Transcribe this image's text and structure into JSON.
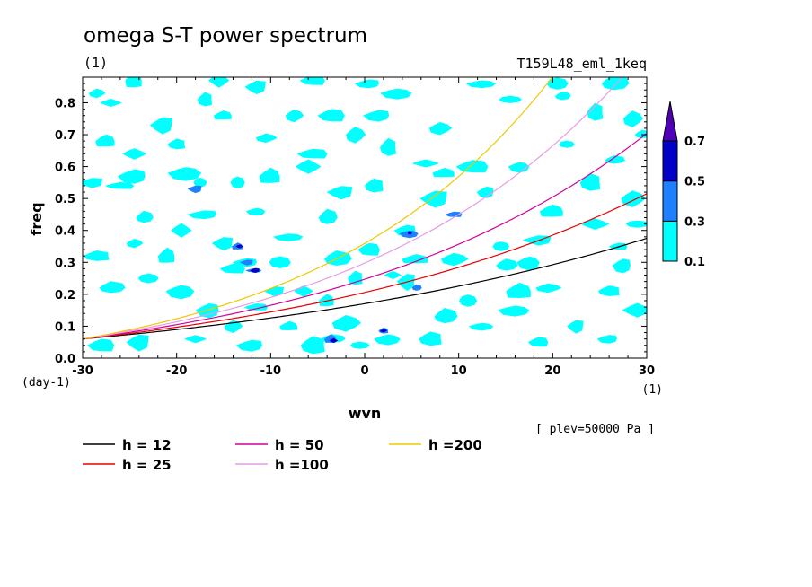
{
  "chart_data": {
    "type": "contour",
    "title": "omega S-T power spectrum",
    "subtitle": "(1)",
    "run_label": "T159L48_eml_1keq",
    "xlabel": "wvn",
    "ylabel": "freq",
    "x_unit": "(1)",
    "y_unit": "(day-1)",
    "pressure_label": "[ plev=50000 Pa ]",
    "xlim": [
      -30,
      30
    ],
    "ylim": [
      0,
      0.88
    ],
    "x_ticks": [
      "-30",
      "-20",
      "-10",
      "0",
      "10",
      "20",
      "30"
    ],
    "x_tick_values": [
      -30,
      -20,
      -10,
      0,
      10,
      20,
      30
    ],
    "y_ticks": [
      "0.0",
      "0.1",
      "0.2",
      "0.3",
      "0.4",
      "0.5",
      "0.6",
      "0.7",
      "0.8"
    ],
    "y_tick_values": [
      0,
      0.1,
      0.2,
      0.3,
      0.4,
      0.5,
      0.6,
      0.7,
      0.8
    ],
    "contour_levels": [
      "0.1",
      "0.3",
      "0.5",
      "0.7"
    ],
    "level_values": [
      0.1,
      0.3,
      0.5,
      0.7
    ],
    "level_colors": [
      "#00ffff",
      "#1e7fff",
      "#0000c8",
      "#5000b4"
    ],
    "dispersion_curves": [
      {
        "h": 12,
        "label": "h = 12",
        "color": "#000000"
      },
      {
        "h": 25,
        "label": "h = 25",
        "color": "#e60000"
      },
      {
        "h": 50,
        "label": "h = 50",
        "color": "#d2009b"
      },
      {
        "h": 100,
        "label": "h =100",
        "color": "#e69ce6"
      },
      {
        "h": 200,
        "label": "h =200",
        "color": "#f0c800"
      }
    ],
    "patches": [
      {
        "x": -28.5,
        "y": 0.83,
        "level": 0.1
      },
      {
        "x": -24.5,
        "y": 0.87,
        "level": 0.1
      },
      {
        "x": -15.5,
        "y": 0.87,
        "level": 0.1
      },
      {
        "x": -11.5,
        "y": 0.85,
        "level": 0.1
      },
      {
        "x": -5.5,
        "y": 0.87,
        "level": 0.1
      },
      {
        "x": 0.5,
        "y": 0.86,
        "level": 0.1
      },
      {
        "x": 12.5,
        "y": 0.86,
        "level": 0.1
      },
      {
        "x": 20.5,
        "y": 0.86,
        "level": 0.1
      },
      {
        "x": 26.5,
        "y": 0.86,
        "level": 0.1
      },
      {
        "x": -17,
        "y": 0.81,
        "level": 0.1
      },
      {
        "x": -7.5,
        "y": 0.76,
        "level": 0.1
      },
      {
        "x": -15,
        "y": 0.76,
        "level": 0.1
      },
      {
        "x": -27,
        "y": 0.8,
        "level": 0.1
      },
      {
        "x": -21.5,
        "y": 0.73,
        "level": 0.1
      },
      {
        "x": -3.5,
        "y": 0.76,
        "level": 0.1
      },
      {
        "x": 1.5,
        "y": 0.76,
        "level": 0.1
      },
      {
        "x": 3.5,
        "y": 0.83,
        "level": 0.1
      },
      {
        "x": 15.5,
        "y": 0.81,
        "level": 0.1
      },
      {
        "x": 21,
        "y": 0.82,
        "level": 0.1
      },
      {
        "x": 24.5,
        "y": 0.77,
        "level": 0.1
      },
      {
        "x": 28.5,
        "y": 0.75,
        "level": 0.1
      },
      {
        "x": -27.5,
        "y": 0.68,
        "level": 0.1
      },
      {
        "x": -24.5,
        "y": 0.64,
        "level": 0.1
      },
      {
        "x": -29,
        "y": 0.55,
        "level": 0.1
      },
      {
        "x": -26,
        "y": 0.54,
        "level": 0.1
      },
      {
        "x": -24.5,
        "y": 0.57,
        "level": 0.1
      },
      {
        "x": -19,
        "y": 0.58,
        "level": 0.1
      },
      {
        "x": -17.5,
        "y": 0.55,
        "level": 0.1
      },
      {
        "x": -23.5,
        "y": 0.44,
        "level": 0.1
      },
      {
        "x": -20,
        "y": 0.67,
        "level": 0.1
      },
      {
        "x": -10.5,
        "y": 0.69,
        "level": 0.1
      },
      {
        "x": -10,
        "y": 0.57,
        "level": 0.1
      },
      {
        "x": -6,
        "y": 0.6,
        "level": 0.1
      },
      {
        "x": -2.5,
        "y": 0.52,
        "level": 0.1
      },
      {
        "x": -5.5,
        "y": 0.64,
        "level": 0.1
      },
      {
        "x": -17,
        "y": 0.45,
        "level": 0.1
      },
      {
        "x": -11.5,
        "y": 0.46,
        "level": 0.1
      },
      {
        "x": -13.5,
        "y": 0.55,
        "level": 0.1
      },
      {
        "x": -4,
        "y": 0.44,
        "level": 0.1
      },
      {
        "x": 1,
        "y": 0.54,
        "level": 0.1
      },
      {
        "x": 8,
        "y": 0.72,
        "level": 0.1
      },
      {
        "x": 8.5,
        "y": 0.58,
        "level": 0.1
      },
      {
        "x": 6.5,
        "y": 0.61,
        "level": 0.1
      },
      {
        "x": 7.5,
        "y": 0.5,
        "level": 0.1
      },
      {
        "x": 11.5,
        "y": 0.6,
        "level": 0.1
      },
      {
        "x": 13,
        "y": 0.52,
        "level": 0.1
      },
      {
        "x": 16.5,
        "y": 0.6,
        "level": 0.1
      },
      {
        "x": 21.5,
        "y": 0.67,
        "level": 0.1
      },
      {
        "x": 26.5,
        "y": 0.62,
        "level": 0.1
      },
      {
        "x": 24,
        "y": 0.55,
        "level": 0.1
      },
      {
        "x": 28.5,
        "y": 0.5,
        "level": 0.1
      },
      {
        "x": 20,
        "y": 0.46,
        "level": 0.1
      },
      {
        "x": 24.5,
        "y": 0.42,
        "level": 0.1
      },
      {
        "x": 18.5,
        "y": 0.37,
        "level": 0.1
      },
      {
        "x": 27,
        "y": 0.35,
        "level": 0.1
      },
      {
        "x": 27.5,
        "y": 0.29,
        "level": 0.1
      },
      {
        "x": 17.5,
        "y": 0.3,
        "level": 0.1
      },
      {
        "x": 14.5,
        "y": 0.35,
        "level": 0.1
      },
      {
        "x": 15,
        "y": 0.29,
        "level": 0.1
      },
      {
        "x": 26,
        "y": 0.21,
        "level": 0.1
      },
      {
        "x": 19.5,
        "y": 0.22,
        "level": 0.1
      },
      {
        "x": 16.5,
        "y": 0.21,
        "level": 0.1
      },
      {
        "x": 29,
        "y": 0.15,
        "level": 0.1
      },
      {
        "x": 22.5,
        "y": 0.1,
        "level": 0.1
      },
      {
        "x": 18.5,
        "y": 0.05,
        "level": 0.1
      },
      {
        "x": 26,
        "y": 0.06,
        "level": 0.1
      },
      {
        "x": 12.5,
        "y": 0.1,
        "level": 0.1
      },
      {
        "x": 11,
        "y": 0.18,
        "level": 0.1
      },
      {
        "x": 8.5,
        "y": 0.13,
        "level": 0.1
      },
      {
        "x": 7,
        "y": 0.06,
        "level": 0.1
      },
      {
        "x": 9.5,
        "y": 0.31,
        "level": 0.1
      },
      {
        "x": 5.5,
        "y": 0.31,
        "level": 0.1
      },
      {
        "x": 3,
        "y": 0.26,
        "level": 0.1
      },
      {
        "x": 4.5,
        "y": 0.24,
        "level": 0.1
      },
      {
        "x": 0.5,
        "y": 0.34,
        "level": 0.1
      },
      {
        "x": 4.5,
        "y": 0.4,
        "level": 0.1
      },
      {
        "x": 2.5,
        "y": 0.06,
        "level": 0.1
      },
      {
        "x": -0.5,
        "y": 0.04,
        "level": 0.1
      },
      {
        "x": -3.5,
        "y": 0.06,
        "level": 0.1
      },
      {
        "x": -5.5,
        "y": 0.04,
        "level": 0.1
      },
      {
        "x": -2,
        "y": 0.11,
        "level": 0.1
      },
      {
        "x": -4,
        "y": 0.18,
        "level": 0.1
      },
      {
        "x": -6.5,
        "y": 0.21,
        "level": 0.1
      },
      {
        "x": -9.5,
        "y": 0.21,
        "level": 0.1
      },
      {
        "x": -11.5,
        "y": 0.16,
        "level": 0.1
      },
      {
        "x": -16.5,
        "y": 0.15,
        "level": 0.1
      },
      {
        "x": -19.5,
        "y": 0.21,
        "level": 0.1
      },
      {
        "x": -23,
        "y": 0.25,
        "level": 0.1
      },
      {
        "x": -27,
        "y": 0.22,
        "level": 0.1
      },
      {
        "x": -28.5,
        "y": 0.32,
        "level": 0.1
      },
      {
        "x": -24.5,
        "y": 0.36,
        "level": 0.1
      },
      {
        "x": -21,
        "y": 0.32,
        "level": 0.1
      },
      {
        "x": -19.5,
        "y": 0.4,
        "level": 0.1
      },
      {
        "x": -15,
        "y": 0.36,
        "level": 0.1
      },
      {
        "x": -14,
        "y": 0.28,
        "level": 0.1
      },
      {
        "x": -12.5,
        "y": 0.3,
        "level": 0.1
      },
      {
        "x": -8,
        "y": 0.38,
        "level": 0.1
      },
      {
        "x": -9,
        "y": 0.3,
        "level": 0.1
      },
      {
        "x": -3,
        "y": 0.31,
        "level": 0.1
      },
      {
        "x": -1,
        "y": 0.25,
        "level": 0.1
      },
      {
        "x": -14,
        "y": 0.1,
        "level": 0.1
      },
      {
        "x": -8,
        "y": 0.1,
        "level": 0.1
      },
      {
        "x": -18,
        "y": 0.06,
        "level": 0.1
      },
      {
        "x": -24,
        "y": 0.05,
        "level": 0.1
      },
      {
        "x": -28,
        "y": 0.04,
        "level": 0.1
      },
      {
        "x": -12,
        "y": 0.04,
        "level": 0.1
      },
      {
        "x": 16,
        "y": 0.15,
        "level": 0.1
      },
      {
        "x": 29,
        "y": 0.42,
        "level": 0.1
      },
      {
        "x": 29.5,
        "y": 0.7,
        "level": 0.1
      },
      {
        "x": 2.5,
        "y": 0.66,
        "level": 0.1
      },
      {
        "x": -1,
        "y": 0.7,
        "level": 0.1
      },
      {
        "x": -13.5,
        "y": 0.35,
        "level": 0.3
      },
      {
        "x": -13.3,
        "y": 0.35,
        "level": 0.5
      },
      {
        "x": -12.5,
        "y": 0.3,
        "level": 0.3
      },
      {
        "x": -11.8,
        "y": 0.275,
        "level": 0.3
      },
      {
        "x": -11.6,
        "y": 0.275,
        "level": 0.5
      },
      {
        "x": 4.8,
        "y": 0.39,
        "level": 0.3
      },
      {
        "x": 4.8,
        "y": 0.392,
        "level": 0.5
      },
      {
        "x": 5.5,
        "y": 0.22,
        "level": 0.3
      },
      {
        "x": 2.0,
        "y": 0.086,
        "level": 0.3
      },
      {
        "x": 2.0,
        "y": 0.086,
        "level": 0.5
      },
      {
        "x": -3.6,
        "y": 0.06,
        "level": 0.3
      },
      {
        "x": -3.3,
        "y": 0.055,
        "level": 0.5
      },
      {
        "x": -18,
        "y": 0.53,
        "level": 0.3
      },
      {
        "x": 9.5,
        "y": 0.45,
        "level": 0.3
      }
    ]
  },
  "legend": [
    {
      "label": "h = 12",
      "color": "#000000"
    },
    {
      "label": "h = 25",
      "color": "#e60000"
    },
    {
      "label": "h = 50",
      "color": "#d2009b"
    },
    {
      "label": "h =100",
      "color": "#e69ce6"
    },
    {
      "label": "h =200",
      "color": "#f0c800"
    }
  ]
}
